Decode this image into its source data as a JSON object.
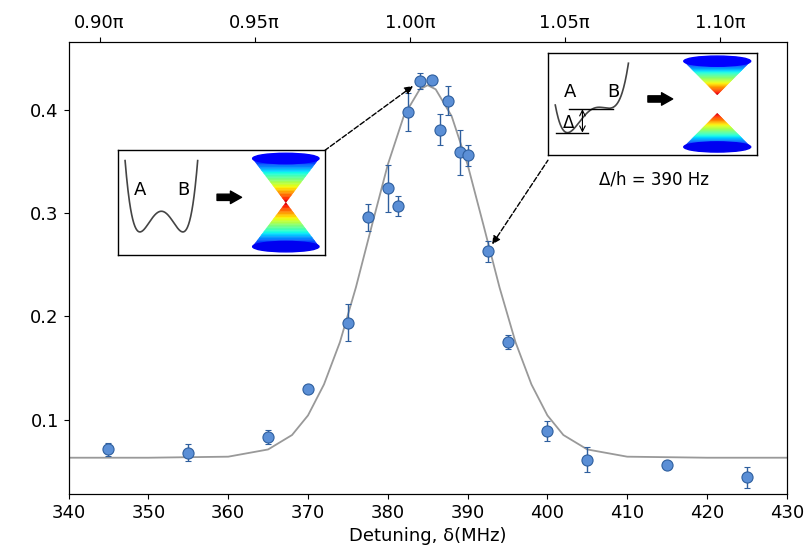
{
  "chart_data": {
    "type": "scatter",
    "xlabel": "Detuning, δ(MHz)",
    "xlim": [
      340,
      430
    ],
    "xticks": [
      340,
      350,
      360,
      370,
      380,
      390,
      400,
      410,
      420,
      430
    ],
    "ylim": [
      0.028,
      0.466
    ],
    "yticks": [
      0.1,
      0.2,
      0.3,
      0.4
    ],
    "x2lim": [
      0.89,
      1.1216
    ],
    "x2ticks": [
      {
        "value": 0.9,
        "label": "0.90π"
      },
      {
        "value": 0.95,
        "label": "0.95π"
      },
      {
        "value": 1.0,
        "label": "1.00π"
      },
      {
        "value": 1.05,
        "label": "1.05π"
      },
      {
        "value": 1.1,
        "label": "1.10π"
      }
    ],
    "series": [
      {
        "type": "scatter",
        "marker": "o",
        "color": "#5b8fd6",
        "x": [
          345,
          355,
          365,
          370,
          375,
          377.5,
          380,
          381.3,
          382.5,
          384,
          385.5,
          386.5,
          387.5,
          389,
          390,
          392.5,
          395,
          400,
          405,
          415,
          425
        ],
        "values": [
          0.071,
          0.068,
          0.083,
          0.13,
          0.194,
          0.296,
          0.324,
          0.307,
          0.398,
          0.428,
          0.429,
          0.381,
          0.409,
          0.359,
          0.356,
          0.263,
          0.175,
          0.089,
          0.061,
          0.056,
          0.044
        ],
        "errors": [
          0.006,
          0.008,
          0.007,
          0.003,
          0.018,
          0.013,
          0.023,
          0.01,
          0.018,
          0.008,
          0.004,
          0.015,
          0.014,
          0.022,
          0.01,
          0.01,
          0.007,
          0.01,
          0.012,
          0.004,
          0.01
        ]
      },
      {
        "type": "line",
        "color": "#999999",
        "line_style": "solid",
        "x": [
          340,
          350,
          360,
          365,
          368,
          370,
          372,
          374,
          376,
          378,
          380,
          382,
          384,
          385,
          386,
          388,
          390,
          392,
          394,
          396,
          398,
          400,
          402,
          405,
          410,
          420,
          430
        ],
        "values": [
          0.063,
          0.063,
          0.064,
          0.071,
          0.085,
          0.104,
          0.134,
          0.175,
          0.228,
          0.288,
          0.347,
          0.394,
          0.42,
          0.424,
          0.42,
          0.394,
          0.347,
          0.288,
          0.228,
          0.175,
          0.134,
          0.104,
          0.085,
          0.071,
          0.064,
          0.063,
          0.063
        ]
      }
    ],
    "annotations": [
      {
        "texts": [
          "A",
          "B"
        ],
        "target": [
          384,
          0.428
        ]
      },
      {
        "texts": [
          "A",
          "B",
          "Δ"
        ],
        "caption": "Δ/h = 390 Hz",
        "target": [
          392.5,
          0.263
        ]
      }
    ]
  }
}
